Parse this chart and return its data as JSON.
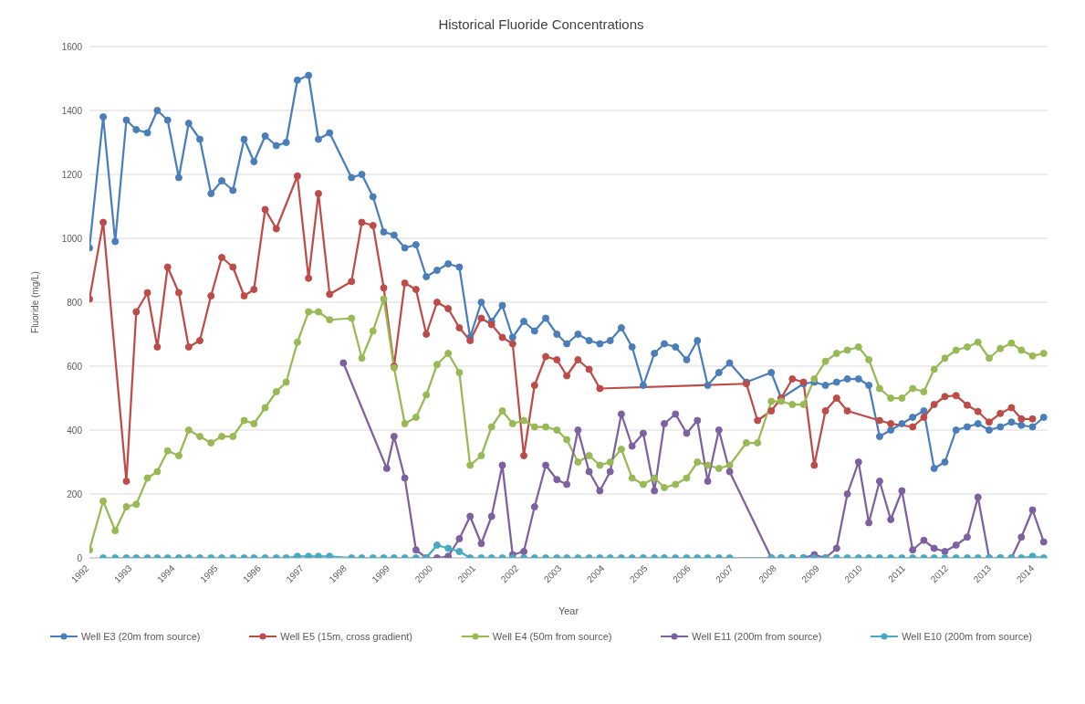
{
  "chart_data": {
    "type": "line",
    "title": "Historical Fluoride Concentrations",
    "xlabel": "Year",
    "ylabel": "Fluoride (mg/L)",
    "xlim": [
      1992,
      2014.3
    ],
    "xticks": [
      1992,
      1993,
      1994,
      1995,
      1996,
      1997,
      1998,
      1999,
      2000,
      2001,
      2002,
      2003,
      2004,
      2005,
      2006,
      2007,
      2008,
      2009,
      2010,
      2011,
      2012,
      2013,
      2014
    ],
    "ylim": [
      0,
      1600
    ],
    "yticks": [
      0,
      200,
      400,
      600,
      800,
      1000,
      1200,
      1400,
      1600
    ],
    "grid": "y",
    "legend": "bottom",
    "marker": "circle",
    "line_style": "solid",
    "series": [
      {
        "name": "Well E3 (20m from source)",
        "color": "#4a7ebb",
        "x": [
          1992.0,
          1992.32,
          1992.6,
          1992.86,
          1993.09,
          1993.35,
          1993.58,
          1993.82,
          1994.08,
          1994.31,
          1994.57,
          1994.83,
          1995.08,
          1995.34,
          1995.6,
          1995.83,
          1996.09,
          1996.35,
          1996.58,
          1996.84,
          1997.1,
          1997.33,
          1997.59,
          1998.1,
          1998.34,
          1998.6,
          1998.85,
          1999.09,
          1999.34,
          1999.6,
          1999.84,
          2000.09,
          2000.35,
          2000.61,
          2000.86,
          2001.12,
          2001.36,
          2001.61,
          2001.85,
          2002.11,
          2002.36,
          2002.62,
          2002.88,
          2003.11,
          2003.37,
          2003.63,
          2003.88,
          2004.12,
          2004.38,
          2004.63,
          2004.89,
          2005.15,
          2005.38,
          2005.64,
          2005.9,
          2006.15,
          2006.39,
          2006.65,
          2006.9,
          2007.29,
          2007.87,
          2008.1,
          2008.62,
          2008.87,
          2009.13,
          2009.39,
          2009.64,
          2009.9,
          2010.14,
          2010.39,
          2010.65,
          2010.91,
          2011.16,
          2011.42,
          2011.66,
          2011.91,
          2012.17,
          2012.43,
          2012.68,
          2012.94,
          2013.2,
          2013.46,
          2013.69,
          2013.95,
          2014.21
        ],
        "values": [
          970,
          1380,
          990,
          1370,
          1340,
          1330,
          1400,
          1370,
          1190,
          1360,
          1310,
          1140,
          1180,
          1150,
          1310,
          1240,
          1320,
          1290,
          1300,
          1495,
          1510,
          1310,
          1330,
          1190,
          1200,
          1130,
          1020,
          1010,
          970,
          980,
          880,
          900,
          920,
          910,
          690,
          800,
          740,
          790,
          690,
          740,
          710,
          750,
          700,
          670,
          700,
          680,
          670,
          680,
          720,
          660,
          540,
          640,
          670,
          660,
          620,
          680,
          540,
          580,
          610,
          550,
          580,
          500,
          545,
          550,
          540,
          550,
          560,
          560,
          540,
          380,
          400,
          420,
          440,
          460,
          280,
          300,
          400,
          410,
          420,
          400,
          410,
          425,
          415,
          410,
          440
        ]
      },
      {
        "name": "Well E5 (15m, cross gradient)",
        "color": "#be4b48",
        "x": [
          1992.0,
          1992.32,
          1992.86,
          1993.09,
          1993.35,
          1993.58,
          1993.82,
          1994.08,
          1994.31,
          1994.57,
          1994.83,
          1995.08,
          1995.34,
          1995.6,
          1995.83,
          1996.09,
          1996.35,
          1996.84,
          1997.1,
          1997.33,
          1997.59,
          1998.1,
          1998.34,
          1998.6,
          1998.85,
          1999.09,
          1999.34,
          1999.6,
          1999.84,
          2000.09,
          2000.35,
          2000.61,
          2000.86,
          2001.12,
          2001.36,
          2001.61,
          2001.85,
          2002.11,
          2002.36,
          2002.62,
          2002.88,
          2003.11,
          2003.37,
          2003.63,
          2003.88,
          2007.29,
          2007.55,
          2007.87,
          2008.1,
          2008.36,
          2008.62,
          2008.87,
          2009.13,
          2009.39,
          2009.64,
          2010.39,
          2010.65,
          2011.16,
          2011.42,
          2011.66,
          2011.91,
          2012.17,
          2012.43,
          2012.68,
          2012.94,
          2013.2,
          2013.46,
          2013.69,
          2013.95
        ],
        "values": [
          810,
          1050,
          240,
          770,
          830,
          660,
          910,
          830,
          660,
          680,
          820,
          940,
          910,
          820,
          840,
          1090,
          1030,
          1195,
          875,
          1140,
          825,
          865,
          1050,
          1040,
          845,
          600,
          860,
          840,
          700,
          800,
          780,
          720,
          680,
          750,
          730,
          690,
          670,
          320,
          540,
          630,
          620,
          570,
          620,
          590,
          530,
          545,
          430,
          460,
          500,
          560,
          550,
          290,
          460,
          500,
          460,
          430,
          420,
          410,
          440,
          480,
          505,
          508,
          478,
          458,
          425,
          452,
          470,
          435,
          435
        ]
      },
      {
        "name": "Well E4 (50m from source)",
        "color": "#98b954",
        "x": [
          1992.0,
          1992.32,
          1992.6,
          1992.86,
          1993.09,
          1993.35,
          1993.58,
          1993.82,
          1994.08,
          1994.31,
          1994.57,
          1994.83,
          1995.08,
          1995.34,
          1995.6,
          1995.83,
          1996.09,
          1996.35,
          1996.58,
          1996.84,
          1997.1,
          1997.33,
          1997.59,
          1998.1,
          1998.34,
          1998.6,
          1998.85,
          1999.09,
          1999.34,
          1999.6,
          1999.84,
          2000.09,
          2000.35,
          2000.61,
          2000.86,
          2001.12,
          2001.36,
          2001.61,
          2001.85,
          2002.11,
          2002.36,
          2002.62,
          2002.88,
          2003.11,
          2003.37,
          2003.63,
          2003.88,
          2004.12,
          2004.38,
          2004.63,
          2004.89,
          2005.15,
          2005.38,
          2005.64,
          2005.9,
          2006.15,
          2006.39,
          2006.65,
          2006.9,
          2007.29,
          2007.55,
          2007.87,
          2008.1,
          2008.36,
          2008.62,
          2008.87,
          2009.13,
          2009.39,
          2009.64,
          2009.9,
          2010.14,
          2010.39,
          2010.65,
          2010.91,
          2011.16,
          2011.42,
          2011.66,
          2011.91,
          2012.17,
          2012.43,
          2012.68,
          2012.94,
          2013.2,
          2013.46,
          2013.69,
          2013.95,
          2014.21
        ],
        "values": [
          25,
          178,
          85,
          160,
          168,
          250,
          270,
          335,
          320,
          400,
          380,
          360,
          380,
          380,
          430,
          420,
          470,
          520,
          550,
          675,
          770,
          770,
          745,
          750,
          625,
          710,
          810,
          595,
          420,
          440,
          510,
          605,
          640,
          580,
          290,
          320,
          410,
          460,
          420,
          430,
          410,
          410,
          400,
          370,
          300,
          320,
          290,
          300,
          340,
          250,
          230,
          250,
          220,
          230,
          250,
          300,
          290,
          280,
          290,
          360,
          360,
          490,
          490,
          480,
          480,
          560,
          615,
          640,
          650,
          660,
          620,
          530,
          500,
          500,
          530,
          520,
          590,
          625,
          650,
          660,
          675,
          625,
          655,
          672,
          650,
          632,
          640
        ]
      },
      {
        "name": "Well E11 (200m from source)",
        "color": "#7d60a0",
        "x": [
          1997.91,
          1998.92,
          1999.09,
          1999.34,
          1999.6,
          1999.84,
          2000.09,
          2000.35,
          2000.61,
          2000.86,
          2001.12,
          2001.36,
          2001.61,
          2001.85,
          2002.11,
          2002.36,
          2002.62,
          2002.88,
          2003.11,
          2003.37,
          2003.63,
          2003.88,
          2004.12,
          2004.38,
          2004.63,
          2004.89,
          2005.15,
          2005.38,
          2005.64,
          2005.9,
          2006.15,
          2006.39,
          2006.65,
          2006.9,
          2007.87,
          2008.1,
          2008.36,
          2008.62,
          2008.87,
          2009.13,
          2009.39,
          2009.64,
          2009.9,
          2010.14,
          2010.39,
          2010.65,
          2010.91,
          2011.16,
          2011.42,
          2011.66,
          2011.91,
          2012.17,
          2012.43,
          2012.68,
          2012.94,
          2013.2,
          2013.46,
          2013.69,
          2013.95,
          2014.21
        ],
        "values": [
          610,
          280,
          380,
          250,
          25,
          0,
          0,
          5,
          60,
          130,
          45,
          130,
          290,
          10,
          20,
          160,
          290,
          245,
          230,
          400,
          270,
          210,
          270,
          450,
          350,
          390,
          210,
          420,
          450,
          390,
          430,
          240,
          400,
          270,
          0,
          0,
          0,
          0,
          10,
          0,
          30,
          200,
          300,
          110,
          240,
          120,
          210,
          25,
          55,
          30,
          20,
          40,
          65,
          190,
          0,
          0,
          0,
          65,
          150,
          50
        ]
      },
      {
        "name": "Well E10 (200m from source)",
        "color": "#46aac5",
        "x": [
          1992.32,
          1992.6,
          1992.86,
          1993.09,
          1993.35,
          1993.58,
          1993.82,
          1994.08,
          1994.31,
          1994.57,
          1994.83,
          1995.08,
          1995.34,
          1995.6,
          1995.83,
          1996.09,
          1996.35,
          1996.58,
          1996.84,
          1997.1,
          1997.33,
          1997.59,
          1998.1,
          1998.34,
          1998.6,
          1998.85,
          1999.09,
          1999.34,
          1999.6,
          1999.84,
          2000.09,
          2000.35,
          2000.61,
          2000.86,
          2001.12,
          2001.36,
          2001.61,
          2001.85,
          2002.11,
          2002.36,
          2002.62,
          2002.88,
          2003.11,
          2003.37,
          2003.63,
          2003.88,
          2004.12,
          2004.38,
          2004.63,
          2004.89,
          2005.15,
          2005.38,
          2005.64,
          2005.9,
          2006.15,
          2006.39,
          2006.65,
          2006.9,
          2007.87,
          2008.1,
          2008.36,
          2008.62,
          2008.87,
          2009.13,
          2009.39,
          2009.64,
          2009.9,
          2010.14,
          2010.39,
          2010.65,
          2010.91,
          2011.16,
          2011.42,
          2011.66,
          2011.91,
          2012.17,
          2012.43,
          2012.68,
          2012.94,
          2013.2,
          2013.46,
          2013.69,
          2013.95,
          2014.21
        ],
        "values": [
          0,
          0,
          0,
          0,
          0,
          0,
          0,
          0,
          0,
          0,
          0,
          0,
          0,
          0,
          0,
          0,
          0,
          0,
          5,
          5,
          5,
          5,
          0,
          0,
          0,
          0,
          0,
          0,
          0,
          0,
          40,
          30,
          20,
          0,
          0,
          0,
          0,
          0,
          0,
          0,
          0,
          0,
          0,
          0,
          0,
          0,
          0,
          0,
          0,
          0,
          0,
          0,
          0,
          0,
          0,
          0,
          0,
          0,
          0,
          0,
          0,
          0,
          0,
          0,
          0,
          0,
          0,
          0,
          0,
          0,
          0,
          0,
          0,
          0,
          0,
          0,
          0,
          0,
          0,
          0,
          0,
          0,
          5,
          0
        ]
      }
    ]
  }
}
